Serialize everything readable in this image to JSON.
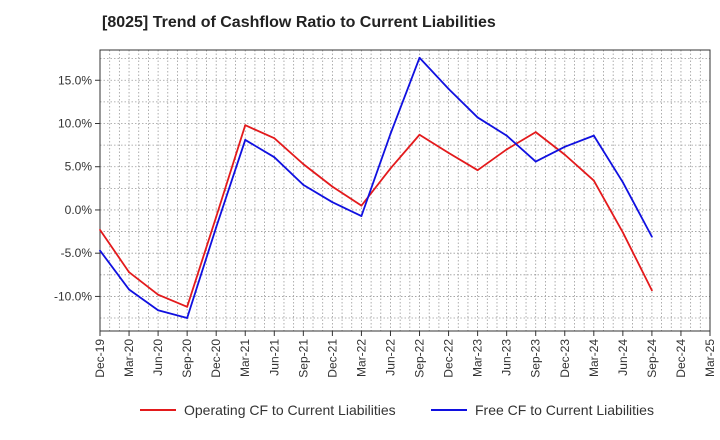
{
  "title": "[8025]  Trend of Cashflow Ratio to Current Liabilities",
  "chart_data": {
    "type": "line",
    "title": "[8025]  Trend of Cashflow Ratio to Current Liabilities",
    "xlabel": "",
    "ylabel": "",
    "ylim": [
      -14.0,
      18.5
    ],
    "yticks": [
      -10.0,
      -5.0,
      0.0,
      5.0,
      10.0,
      15.0
    ],
    "ytick_labels": [
      "-10.0%",
      "-5.0%",
      "0.0%",
      "5.0%",
      "10.0%",
      "15.0%"
    ],
    "x_tick_labels": [
      "Dec-19",
      "Mar-20",
      "Jun-20",
      "Sep-20",
      "Dec-20",
      "Mar-21",
      "Jun-21",
      "Sep-21",
      "Dec-21",
      "Mar-22",
      "Jun-22",
      "Sep-22",
      "Dec-22",
      "Mar-23",
      "Jun-23",
      "Sep-23",
      "Dec-23",
      "Mar-24",
      "Jun-24",
      "Sep-24",
      "Dec-24",
      "Mar-25"
    ],
    "categories": [
      "Dec-19",
      "Mar-20",
      "Jun-20",
      "Sep-20",
      "Dec-20",
      "Mar-21",
      "Jun-21",
      "Sep-21",
      "Dec-21",
      "Mar-22",
      "Jun-22",
      "Sep-22",
      "Dec-22",
      "Mar-23",
      "Jun-23",
      "Sep-23",
      "Dec-23",
      "Mar-24",
      "Jun-24",
      "Sep-24"
    ],
    "grid": true,
    "legend_position": "bottom",
    "series": [
      {
        "name": "Operating CF to Current Liabilities",
        "color": "#e31a1c",
        "values": [
          -2.3,
          -7.2,
          -9.8,
          -11.2,
          -0.8,
          9.8,
          8.3,
          5.3,
          2.7,
          0.5,
          4.8,
          8.7,
          6.6,
          4.6,
          7.0,
          9.0,
          6.4,
          3.4,
          -2.6,
          -9.3
        ]
      },
      {
        "name": "Free CF to Current Liabilities",
        "color": "#1010e0",
        "values": [
          -4.7,
          -9.2,
          -11.6,
          -12.5,
          -2.0,
          8.1,
          6.1,
          2.9,
          0.9,
          -0.7,
          8.8,
          17.6,
          14.0,
          10.7,
          8.6,
          5.6,
          7.3,
          8.6,
          3.2,
          -3.1
        ]
      }
    ]
  }
}
